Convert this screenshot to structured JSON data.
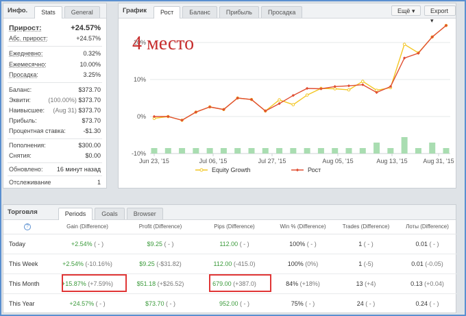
{
  "info": {
    "title": "Инфо.",
    "tabs": [
      "Stats",
      "General"
    ],
    "growth_label": "Прирост:",
    "growth_value": "+24.57%",
    "abs_growth_label": "Абс. прирост:",
    "abs_growth_value": "+24.57%",
    "daily_label": "Ежедневно:",
    "daily_value": "0.32%",
    "monthly_label": "Ежемесячно:",
    "monthly_value": "10.00%",
    "drawdown_label": "Просадка:",
    "drawdown_value": "3.25%",
    "balance_label": "Баланс:",
    "balance_value": "$373.70",
    "equity_label": "Эквити:",
    "equity_paren": "(100.00%)",
    "equity_value": "$373.70",
    "highest_label": "Наивысшее:",
    "highest_paren": "(Aug 31)",
    "highest_value": "$373.70",
    "profit_label": "Прибыль:",
    "profit_value": "$73.70",
    "interest_label": "Процентная ставка:",
    "interest_value": "-$1.30",
    "deposits_label": "Пополнения:",
    "deposits_value": "$300.00",
    "withdrawals_label": "Снятия:",
    "withdrawals_value": "$0.00",
    "updated_label": "Обновлено:",
    "updated_value": "16 минут назад",
    "tracking_label": "Отслеживание",
    "tracking_value": "1"
  },
  "chart_panel": {
    "title": "График",
    "tabs": [
      "Рост",
      "Баланс",
      "Прибыль",
      "Просадка"
    ],
    "more_button": "Ещё",
    "export_button": "Export",
    "overlay_text": "4 место"
  },
  "chart_data": {
    "type": "line",
    "x_tick_labels": [
      "Jun 23, '15",
      "Jul 06, '15",
      "Jul 27, '15",
      "Aug 05, '15",
      "Aug 13, '15",
      "Aug 31, '15"
    ],
    "y_tick_labels": [
      "-10%",
      "0%",
      "10%",
      "20%"
    ],
    "ylim": [
      -10,
      25
    ],
    "legend_position": "bottom",
    "series": [
      {
        "name": "Equity Growth",
        "color": "#f3c623",
        "values": [
          -0.5,
          0,
          -1,
          1.2,
          2.6,
          1.9,
          5,
          4.6,
          1.5,
          4.5,
          3.2,
          5.8,
          7.6,
          7.5,
          7.2,
          9.5,
          7.1,
          7.8,
          19.5,
          17.2,
          21.5,
          24.6
        ]
      },
      {
        "name": "Рост",
        "color": "#e04e32",
        "values": [
          0,
          0,
          -1,
          1.2,
          2.6,
          1.9,
          5,
          4.6,
          1.5,
          3.5,
          5.7,
          7.6,
          7.5,
          8.1,
          8.3,
          8.6,
          6.5,
          8.1,
          15.8,
          17.1,
          21.5,
          24.6
        ]
      }
    ],
    "bars": {
      "color": "#a9ddb1",
      "values": [
        1,
        1,
        1,
        1,
        1,
        1,
        1,
        1,
        1,
        1,
        1,
        1,
        1,
        1,
        1,
        1,
        2,
        1,
        3,
        1,
        2,
        1
      ]
    }
  },
  "trade": {
    "title": "Торговля",
    "tabs": [
      "Periods",
      "Goals",
      "Browser"
    ],
    "help_icon": "?",
    "columns": [
      "Gain (Difference)",
      "Profit (Difference)",
      "Pips (Difference)",
      "Win % (Difference)",
      "Trades (Difference)",
      "Лоты (Difference)"
    ],
    "rows": [
      {
        "label": "Today",
        "gain": "+2.54%",
        "gain_d": "( - )",
        "profit": "$9.25",
        "profit_d": "( - )",
        "pips": "112.00",
        "pips_d": "( - )",
        "win": "100%",
        "win_d": "( - )",
        "trades": "1",
        "trades_d": "( - )",
        "lots": "0.01",
        "lots_d": "( - )"
      },
      {
        "label": "This Week",
        "gain": "+2.54%",
        "gain_d": "(-10.16%)",
        "profit": "$9.25",
        "profit_d": "(-$31.82)",
        "pips": "112.00",
        "pips_d": "(-415.0)",
        "win": "100%",
        "win_d": "(0%)",
        "trades": "1",
        "trades_d": "(-5)",
        "lots": "0.01",
        "lots_d": "(-0.05)"
      },
      {
        "label": "This Month",
        "gain": "+15.87%",
        "gain_d": "(+7.59%)",
        "profit": "$51.18",
        "profit_d": "(+$26.52)",
        "pips": "679.00",
        "pips_d": "(+387.0)",
        "win": "84%",
        "win_d": "(+18%)",
        "trades": "13",
        "trades_d": "(+4)",
        "lots": "0.13",
        "lots_d": "(+0.04)"
      },
      {
        "label": "This Year",
        "gain": "+24.57%",
        "gain_d": "( - )",
        "profit": "$73.70",
        "profit_d": "( - )",
        "pips": "952.00",
        "pips_d": "( - )",
        "win": "75%",
        "win_d": "( - )",
        "trades": "24",
        "trades_d": "( - )",
        "lots": "0.24",
        "lots_d": "( - )"
      }
    ]
  }
}
